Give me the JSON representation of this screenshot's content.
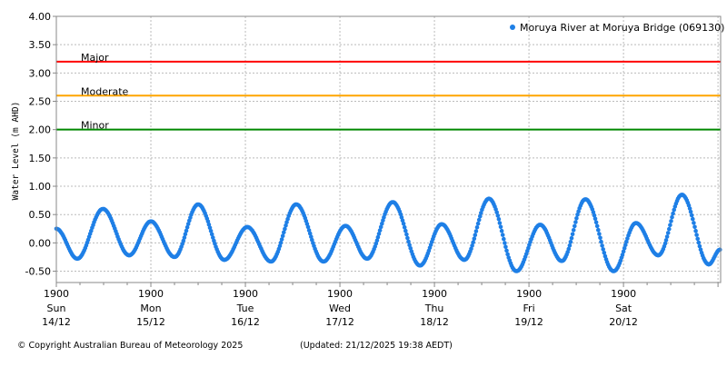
{
  "chart_data": {
    "type": "scatter",
    "ylabel": "Water Level (m AHD)",
    "xlabel": "",
    "ylim": [
      -0.7,
      4.0
    ],
    "xlim": [
      "14/12 19:00",
      "21/12 19:40"
    ],
    "grid": true,
    "legend_position": "top-right",
    "yticks": [
      "4.00",
      "3.50",
      "3.00",
      "2.50",
      "2.00",
      "1.50",
      "1.00",
      "0.50",
      "0.00",
      "-0.50"
    ],
    "ytick_values": [
      4.0,
      3.5,
      3.0,
      2.5,
      2.0,
      1.5,
      1.0,
      0.5,
      0.0,
      -0.5
    ],
    "xticks": [
      {
        "time": "1900",
        "day": "Sun",
        "date": "14/12"
      },
      {
        "time": "1900",
        "day": "Mon",
        "date": "15/12"
      },
      {
        "time": "1900",
        "day": "Tue",
        "date": "16/12"
      },
      {
        "time": "1900",
        "day": "Wed",
        "date": "17/12"
      },
      {
        "time": "1900",
        "day": "Thu",
        "date": "18/12"
      },
      {
        "time": "1900",
        "day": "Fri",
        "date": "19/12"
      },
      {
        "time": "1900",
        "day": "Sat",
        "date": "20/12"
      }
    ],
    "thresholds": [
      {
        "name": "Major",
        "value": 3.2,
        "color": "#ff0000"
      },
      {
        "name": "Moderate",
        "value": 2.6,
        "color": "#ffa500"
      },
      {
        "name": "Minor",
        "value": 2.0,
        "color": "#008800"
      }
    ],
    "series": [
      {
        "name": "Moruya River at Moruya Bridge (069130)",
        "color": "#1e7fe6",
        "extrema": [
          [
            "14/12 19:00",
            0.25
          ],
          [
            "15/12 00:20",
            -0.28
          ],
          [
            "15/12 06:50",
            0.6
          ],
          [
            "15/12 13:30",
            -0.22
          ],
          [
            "15/12 19:00",
            0.38
          ],
          [
            "16/12 01:00",
            -0.25
          ],
          [
            "16/12 07:00",
            0.68
          ],
          [
            "16/12 13:40",
            -0.3
          ],
          [
            "16/12 19:30",
            0.28
          ],
          [
            "17/12 01:30",
            -0.33
          ],
          [
            "17/12 07:55",
            0.68
          ],
          [
            "17/12 14:50",
            -0.33
          ],
          [
            "17/12 20:25",
            0.3
          ],
          [
            "18/12 01:55",
            -0.28
          ],
          [
            "18/12 08:25",
            0.72
          ],
          [
            "18/12 15:20",
            -0.4
          ],
          [
            "18/12 20:50",
            0.33
          ],
          [
            "19/12 02:35",
            -0.3
          ],
          [
            "19/12 08:50",
            0.78
          ],
          [
            "19/12 15:50",
            -0.5
          ],
          [
            "19/12 21:50",
            0.32
          ],
          [
            "20/12 03:20",
            -0.32
          ],
          [
            "20/12 09:20",
            0.77
          ],
          [
            "20/12 16:30",
            -0.5
          ],
          [
            "20/12 22:10",
            0.35
          ],
          [
            "21/12 03:50",
            -0.22
          ],
          [
            "21/12 09:50",
            0.85
          ],
          [
            "21/12 16:40",
            -0.38
          ],
          [
            "21/12 19:30",
            -0.12
          ]
        ]
      }
    ]
  },
  "footer": {
    "copyright": "© Copyright Australian Bureau of Meteorology 2025",
    "updated": "(Updated: 21/12/2025 19:38 AEDT)"
  }
}
